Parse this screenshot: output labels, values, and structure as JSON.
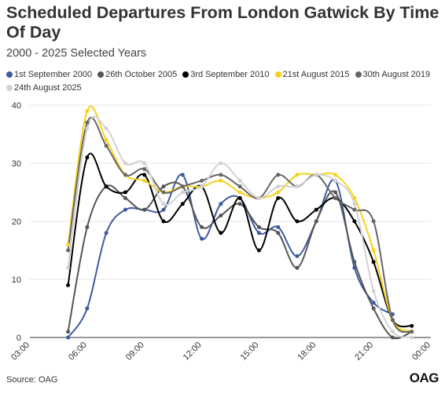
{
  "header": {
    "title": "Scheduled Departures From London Gatwick By Time Of Day",
    "subtitle": "2000 - 2025 Selected Years"
  },
  "footer": {
    "source": "Source: OAG",
    "logo": "OAG"
  },
  "chart_data": {
    "type": "line",
    "xlabel": "",
    "ylabel": "",
    "ylim": [
      0,
      40
    ],
    "yticks": [
      0,
      10,
      20,
      30,
      40
    ],
    "xticks": [
      "03:00",
      "06:00",
      "09:00",
      "12:00",
      "15:00",
      "18:00",
      "21:00",
      "00:00"
    ],
    "grid": true,
    "legend_position": "top",
    "x": [
      "05:00",
      "06:00",
      "07:00",
      "08:00",
      "09:00",
      "10:00",
      "11:00",
      "12:00",
      "13:00",
      "14:00",
      "15:00",
      "16:00",
      "17:00",
      "18:00",
      "19:00",
      "20:00",
      "21:00",
      "22:00",
      "23:00"
    ],
    "series": [
      {
        "name": "1st September 2000",
        "color": "#3d5ba0",
        "values": [
          0,
          5,
          18,
          22,
          22,
          22,
          28,
          17,
          23,
          24,
          18,
          19,
          14,
          20,
          27,
          12,
          6,
          4,
          null
        ]
      },
      {
        "name": "26th October 2005",
        "color": "#555555",
        "values": [
          1,
          19,
          26,
          24,
          22,
          26,
          26,
          19,
          21,
          23,
          19,
          18,
          12,
          20,
          25,
          13,
          5,
          0,
          1
        ]
      },
      {
        "name": "3rd September 2010",
        "color": "#000000",
        "values": [
          9,
          31,
          26,
          25,
          28,
          20,
          23,
          26,
          18,
          24,
          15,
          24,
          20,
          22,
          24,
          20,
          13,
          3,
          2
        ]
      },
      {
        "name": "21st August 2015",
        "color": "#f5d21c",
        "values": [
          16,
          39,
          34,
          28,
          27,
          25,
          26,
          26,
          27,
          25,
          24,
          25,
          28,
          28,
          28,
          24,
          15,
          3,
          1
        ]
      },
      {
        "name": "30th August 2019",
        "color": "#666666",
        "values": [
          15,
          37,
          33,
          28,
          29,
          25,
          26,
          27,
          28,
          26,
          24,
          28,
          26,
          28,
          24,
          22,
          20,
          3,
          1
        ]
      },
      {
        "name": "24th August 2025",
        "color": "#d2d2d2",
        "values": [
          12,
          36,
          36,
          30,
          30,
          23,
          25,
          26,
          30,
          27,
          24,
          26,
          26,
          28,
          27,
          23,
          8,
          1,
          0
        ]
      }
    ]
  }
}
